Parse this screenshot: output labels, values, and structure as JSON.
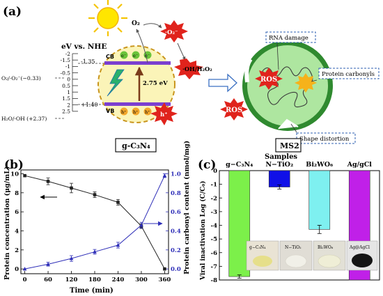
{
  "panel_a": {
    "label": "(a)",
    "energy_axis_title": "eV vs. NHE",
    "energy_ticks": [
      "-2",
      "-1.5",
      "-1",
      "-0.5",
      "0",
      "0.5",
      "1",
      "1.5",
      "2",
      "2.5"
    ],
    "cb_potential": "-1.35",
    "vb_potential": "+1.40",
    "o2_level": "O₂/·O₂⁻(−0.33)",
    "h2o_level": "H₂O/·OH (+2.37)",
    "band_gap": "2.75 eV",
    "cb_label": "CB",
    "vb_label": "VB",
    "electron": "e⁻",
    "hole": "h⁺",
    "o2_label": "O₂",
    "superoxide": "·O₂⁻",
    "oh_h2o2": "·OH/H₂O₂",
    "hole_burst": "h⁺",
    "ros": "ROS",
    "rna_damage": "RNA damage",
    "protein_carbonyls": "Protein carbonyls",
    "shape_distortion": "Shape distortion",
    "material_label": "g-C₃N₄",
    "virus_label": "MS2"
  },
  "panel_b": {
    "label": "(b)",
    "chart_data": {
      "type": "line",
      "xlabel": "Time (min)",
      "ylabel_left": "Protein concentration (μg/mL)",
      "ylabel_right": "Protein carbonyl content (nmol/mg)",
      "x": [
        0,
        60,
        120,
        180,
        240,
        300,
        360
      ],
      "xlim": [
        -10,
        370
      ],
      "ylim_left": [
        -0.5,
        10.4
      ],
      "ylim_right": [
        -0.05,
        1.04
      ],
      "left_ticks": [
        "0",
        "2",
        "4",
        "6",
        "8",
        "10"
      ],
      "right_ticks": [
        "0.0",
        "0.2",
        "0.4",
        "0.6",
        "0.8",
        "1.0"
      ],
      "series": [
        {
          "axis": "left",
          "color": "#222222",
          "values": [
            9.8,
            9.2,
            8.5,
            7.8,
            7.0,
            4.5,
            0.0
          ],
          "errors": [
            0.0,
            0.35,
            0.5,
            0.3,
            0.3,
            0.25,
            0.0
          ]
        },
        {
          "axis": "right",
          "color": "#2e2eb8",
          "values": [
            0.0,
            0.05,
            0.11,
            0.18,
            0.25,
            0.46,
            0.98
          ],
          "errors": [
            0.0,
            0.02,
            0.03,
            0.025,
            0.03,
            0.03,
            0.02
          ]
        }
      ]
    }
  },
  "panel_c": {
    "label": "(c)",
    "photo_labels": [
      "g−C₃N₄",
      "N−TiO₂",
      "Bi₂WO₆",
      "Ag@AgCl"
    ],
    "chart_data": {
      "type": "bar",
      "title": "Samples",
      "ylabel": "Viral inactivation Log (C/C₀)",
      "categories": [
        "g−C₃N₄",
        "N−TiO₂",
        "Bi₂WO₆",
        "Ag/gCl"
      ],
      "values": [
        -7.75,
        -1.2,
        -4.3,
        -8.0
      ],
      "errors": [
        0.12,
        0.15,
        0.3,
        0.0
      ],
      "colors": [
        "#7cf04a",
        "#1010e8",
        "#7ef0f0",
        "#c020e8"
      ],
      "ylim": [
        -8,
        0
      ],
      "yticks": [
        "0",
        "-1",
        "-2",
        "-3",
        "-4",
        "-5",
        "-6",
        "-7",
        "-8"
      ]
    }
  }
}
